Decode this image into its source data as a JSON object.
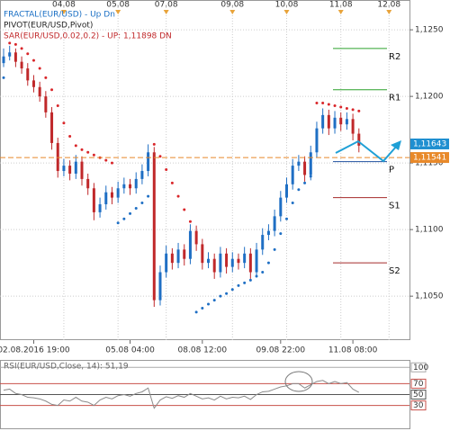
{
  "chart_data": [
    {
      "type": "candlestick",
      "indicators": [
        {
          "text": "FRACTAL(EUR/USD) - Up Dn",
          "color": "#1a6fc4"
        },
        {
          "text": "PIVOT(EUR/USD,Pivot)",
          "color": "#222222"
        },
        {
          "text": "SAR(EUR/USD,0.02,0.2) - UP: 1,11898 DN",
          "color": "#c0282a"
        }
      ],
      "categories": [
        null,
        null,
        null,
        null,
        null,
        "02.08.2016 19:00",
        null,
        null,
        null,
        null,
        null,
        null,
        null,
        null,
        null,
        null,
        null,
        null,
        null,
        null,
        null,
        "05.08 04:00",
        null,
        null,
        null,
        null,
        null,
        null,
        null,
        null,
        null,
        null,
        null,
        "08.08 12:00",
        null,
        null,
        null,
        null,
        null,
        null,
        null,
        null,
        null,
        null,
        null,
        null,
        "09.08 22:00",
        null,
        null,
        null,
        null,
        null,
        null,
        null,
        null,
        null,
        null,
        null,
        "11.08 08:00",
        null,
        null,
        null,
        null,
        null,
        null,
        null,
        null,
        null
      ],
      "top_categories": [
        null,
        null,
        null,
        null,
        null,
        null,
        null,
        null,
        null,
        null,
        "04.08",
        null,
        null,
        null,
        null,
        null,
        null,
        null,
        null,
        "05.08",
        null,
        null,
        null,
        null,
        null,
        null,
        null,
        "07.08",
        null,
        null,
        null,
        null,
        null,
        null,
        null,
        null,
        null,
        null,
        "09.08",
        null,
        null,
        null,
        null,
        null,
        null,
        null,
        null,
        "10.08",
        null,
        null,
        null,
        null,
        null,
        null,
        null,
        null,
        "11.08",
        null,
        null,
        null,
        null,
        null,
        null,
        null,
        "12.08",
        null,
        null,
        null
      ],
      "open": [
        1.1225,
        1.123,
        1.1233,
        1.1226,
        1.1221,
        1.1212,
        1.1207,
        1.12,
        1.1188,
        1.1165,
        1.1144,
        1.1148,
        1.1142,
        1.1151,
        1.1138,
        1.1131,
        1.1113,
        1.1119,
        1.1128,
        1.1124,
        1.1131,
        1.1134,
        1.1131,
        1.1138,
        1.1144,
        1.1158,
        1.1047,
        1.1068,
        1.1082,
        1.1075,
        1.1085,
        1.1078,
        1.1099,
        1.1089,
        1.1075,
        1.1078,
        1.1068,
        1.1082,
        1.1072,
        1.1078,
        1.1075,
        1.1082,
        1.1068,
        1.1085,
        1.1096,
        1.1099,
        1.111,
        1.1124,
        1.1134,
        1.1148,
        1.1151,
        1.1141,
        1.1158,
        1.1176,
        1.1186,
        1.1176,
        1.1184,
        1.1179,
        1.1183,
        1.1172,
        null,
        null,
        null,
        null,
        null,
        null,
        null,
        null
      ],
      "high": [
        1.1236,
        1.1238,
        1.1236,
        1.123,
        1.1225,
        1.1216,
        1.1211,
        1.1204,
        1.1192,
        1.1169,
        1.1153,
        1.1152,
        1.1156,
        1.1155,
        1.1142,
        1.1135,
        1.1124,
        1.1133,
        1.1132,
        1.1136,
        1.1139,
        1.1138,
        1.1143,
        1.1149,
        1.1164,
        1.1162,
        1.1073,
        1.1088,
        1.1086,
        1.109,
        1.1089,
        1.1104,
        1.1103,
        1.1093,
        1.1083,
        1.1082,
        1.1087,
        1.1086,
        1.1083,
        1.1082,
        1.1087,
        1.1086,
        1.109,
        1.1101,
        1.1104,
        1.1115,
        1.1129,
        1.1139,
        1.1153,
        1.1156,
        1.1155,
        1.1163,
        1.1181,
        1.1191,
        1.119,
        1.1189,
        1.1188,
        1.1188,
        1.1187,
        1.1176,
        null,
        null,
        null,
        null,
        null,
        null,
        null,
        null
      ],
      "low": [
        1.1222,
        1.1227,
        1.1222,
        1.1217,
        1.1208,
        1.1203,
        1.1196,
        1.1184,
        1.116,
        1.1139,
        1.114,
        1.1137,
        1.1138,
        1.1133,
        1.1126,
        1.1107,
        1.1109,
        1.1115,
        1.1119,
        1.112,
        1.1127,
        1.1126,
        1.1127,
        1.1134,
        1.114,
        1.1042,
        1.1043,
        1.1064,
        1.107,
        1.1071,
        1.1073,
        1.1074,
        1.1084,
        1.107,
        1.1071,
        1.1063,
        1.1064,
        1.1067,
        1.1068,
        1.107,
        1.1071,
        1.1063,
        1.1064,
        1.1081,
        1.1092,
        1.1095,
        1.1106,
        1.112,
        1.113,
        1.1144,
        1.1136,
        1.1137,
        1.1154,
        1.1172,
        1.1171,
        1.1172,
        1.1174,
        1.1175,
        1.1167,
        1.1158,
        null,
        null,
        null,
        null,
        null,
        null,
        null,
        null
      ],
      "close": [
        1.123,
        1.1233,
        1.1226,
        1.1221,
        1.1212,
        1.1207,
        1.12,
        1.1188,
        1.1165,
        1.1144,
        1.1148,
        1.1142,
        1.1151,
        1.1138,
        1.1131,
        1.1113,
        1.1119,
        1.1128,
        1.1124,
        1.1131,
        1.1134,
        1.1131,
        1.1138,
        1.1144,
        1.1158,
        1.1047,
        1.1068,
        1.1082,
        1.1075,
        1.1085,
        1.1078,
        1.1099,
        1.1089,
        1.1075,
        1.1078,
        1.1068,
        1.1082,
        1.1072,
        1.1078,
        1.1075,
        1.1082,
        1.1068,
        1.1085,
        1.1096,
        1.1099,
        1.111,
        1.1124,
        1.1134,
        1.1148,
        1.1151,
        1.1141,
        1.1158,
        1.1176,
        1.1186,
        1.1176,
        1.1184,
        1.1179,
        1.1183,
        1.1172,
        1.1163,
        null,
        null,
        null,
        null,
        null,
        null,
        null,
        null
      ],
      "up_color": "#1f6fc4",
      "down_color": "#c0282a",
      "sar": {
        "values": [
          1.1214,
          1.124,
          1.1239,
          1.1236,
          1.1232,
          1.1227,
          1.1221,
          1.1214,
          1.1205,
          1.1193,
          1.118,
          1.117,
          1.1163,
          1.116,
          1.1158,
          1.1156,
          1.1154,
          1.1152,
          1.115,
          1.1105,
          1.1108,
          1.1112,
          1.1116,
          1.112,
          1.1125,
          1.1164,
          1.1155,
          1.1145,
          1.1135,
          1.1125,
          1.1115,
          1.1106,
          1.1038,
          1.1041,
          1.1044,
          1.1047,
          1.105,
          1.1052,
          1.1055,
          1.1058,
          1.106,
          1.1062,
          1.1065,
          1.1068,
          1.1075,
          1.1085,
          1.1097,
          1.1108,
          1.112,
          1.113,
          1.1135,
          1.114,
          1.1195,
          1.1195,
          1.1194,
          1.1193,
          1.1192,
          1.1191,
          1.119,
          1.1189,
          null,
          null,
          null,
          null,
          null,
          null,
          null,
          null
        ],
        "up_color": "#1f6fc4",
        "down_color": "#d9262a"
      },
      "pivots": [
        {
          "name": "R2",
          "value": 1.1236,
          "color": "#2ca02c"
        },
        {
          "name": "R1",
          "value": 1.1205,
          "color": "#2ca02c"
        },
        {
          "name": "P",
          "value": 1.1151,
          "color": "#1f4f9f"
        },
        {
          "name": "S1",
          "value": 1.1124,
          "color": "#a52a2a"
        },
        {
          "name": "S2",
          "value": 1.1075,
          "color": "#a52a2a"
        }
      ],
      "price_labels": [
        {
          "value": 1.11643,
          "label": "1,11643",
          "color": "#1f8fd0",
          "dashed": false
        },
        {
          "value": 1.11541,
          "label": "1,11541",
          "color": "#e8892a",
          "dashed": true
        }
      ],
      "ylim": [
        1.1017,
        1.1269
      ],
      "yticks": [
        {
          "value": 1.105,
          "label": "1,1050"
        },
        {
          "value": 1.11,
          "label": "1,1100"
        },
        {
          "value": 1.115,
          "label": "1,1150"
        },
        {
          "value": 1.12,
          "label": "1,1200"
        },
        {
          "value": 1.125,
          "label": "1,1250"
        }
      ],
      "grid": true
    },
    {
      "type": "line",
      "title": "RSI(EUR/USD,Close, 14): 51,19",
      "values": [
        58,
        60,
        52,
        50,
        45,
        44,
        42,
        38,
        32,
        30,
        40,
        38,
        45,
        38,
        36,
        30,
        40,
        45,
        42,
        48,
        50,
        47,
        52,
        55,
        62,
        25,
        40,
        46,
        43,
        48,
        45,
        52,
        47,
        42,
        44,
        40,
        47,
        42,
        45,
        44,
        47,
        41,
        50,
        55,
        56,
        60,
        64,
        66,
        70,
        70,
        62,
        68,
        74,
        76,
        70,
        74,
        70,
        72,
        60,
        54,
        null,
        null,
        null,
        null,
        null,
        null,
        null,
        null
      ],
      "color": "#8a8a8a",
      "ylim": [
        -12,
        112
      ],
      "yticks": [
        30,
        50,
        70,
        100
      ],
      "level_colors": [
        "#c8504a",
        "#555555",
        "#c8504a",
        "#aaaaaa"
      ]
    }
  ]
}
